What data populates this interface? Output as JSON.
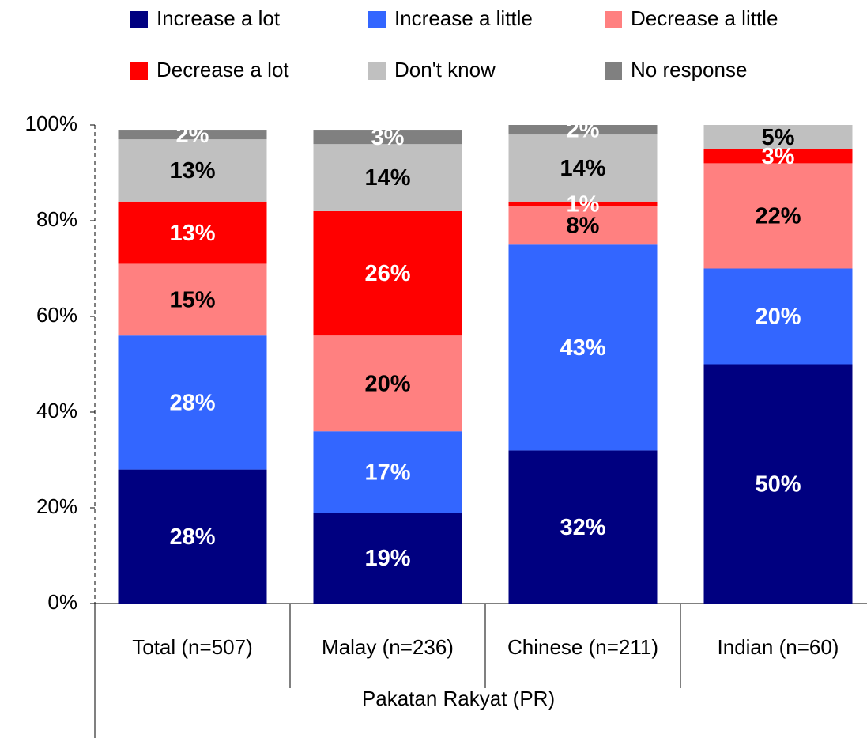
{
  "chart_data": {
    "type": "stacked_bar",
    "categories": [
      "Total (n=507)",
      "Malay (n=236)",
      "Chinese (n=211)",
      "Indian (n=60)"
    ],
    "group_label": "Pakatan Rakyat (PR)",
    "series": [
      {
        "name": "Increase a lot",
        "color": "#000080",
        "values": [
          28,
          19,
          32,
          50
        ],
        "value_labels": [
          "28%",
          "19%",
          "32%",
          "50%"
        ]
      },
      {
        "name": "Increase a little",
        "color": "#3366ff",
        "values": [
          28,
          17,
          43,
          20
        ],
        "value_labels": [
          "28%",
          "17%",
          "43%",
          "20%"
        ]
      },
      {
        "name": "Decrease a little",
        "color": "#ff8080",
        "values": [
          15,
          20,
          8,
          22
        ],
        "value_labels": [
          "15%",
          "20%",
          "8%",
          "22%"
        ]
      },
      {
        "name": "Decrease a lot",
        "color": "#ff0000",
        "values": [
          13,
          26,
          1,
          3
        ],
        "value_labels": [
          "13%",
          "26%",
          "1%",
          "3%"
        ]
      },
      {
        "name": "Don't know",
        "color": "#c0c0c0",
        "values": [
          13,
          14,
          14,
          5
        ],
        "value_labels": [
          "13%",
          "14%",
          "14%",
          "5%"
        ]
      },
      {
        "name": "No response",
        "color": "#808080",
        "values": [
          2,
          3,
          2,
          null
        ],
        "value_labels": [
          "2%",
          "3%",
          "2%",
          null
        ]
      }
    ],
    "ylim": [
      0,
      100
    ],
    "yticks": [
      {
        "value": 0,
        "label": "0%"
      },
      {
        "value": 20,
        "label": "20%"
      },
      {
        "value": 40,
        "label": "40%"
      },
      {
        "value": 60,
        "label": "60%"
      },
      {
        "value": 80,
        "label": "80%"
      },
      {
        "value": 100,
        "label": "100%"
      }
    ],
    "legend": "top"
  }
}
